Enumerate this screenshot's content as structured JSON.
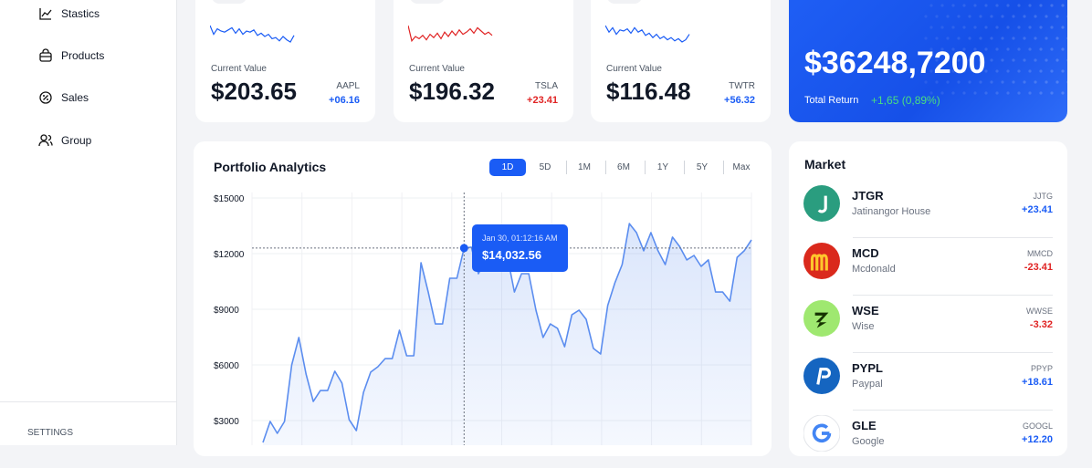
{
  "sidebar": {
    "menu": [
      "Stastics",
      "Products",
      "Sales",
      "Group"
    ],
    "settings": "SETTINGS"
  },
  "cards": [
    {
      "label": "Current Value",
      "value": "$203.65",
      "ticker": "AAPL",
      "change": "+06.16",
      "color": "#1a5cf5"
    },
    {
      "label": "Current Value",
      "value": "$196.32",
      "ticker": "TSLA",
      "change": "+23.41",
      "color": "#e02424"
    },
    {
      "label": "Current Value",
      "value": "$116.48",
      "ticker": "TWTR",
      "change": "+56.32",
      "color": "#1a5cf5"
    }
  ],
  "total": {
    "value": "$36248,7200",
    "label": "Total Return",
    "change": "+1,65 (0,89%)"
  },
  "portfolio": {
    "title": "Portfolio Analytics",
    "ranges": [
      "1D",
      "5D",
      "1M",
      "6M",
      "1Y",
      "5Y",
      "Max"
    ],
    "chart": {
      "type": "line",
      "color": "#5b8def",
      "grid": true,
      "ylim": [
        0,
        15000
      ],
      "yticks": [
        {
          "value": 3000,
          "label": "$3000"
        },
        {
          "value": 6000,
          "label": "$6000"
        },
        {
          "value": 9000,
          "label": "$9000"
        },
        {
          "value": 12000,
          "label": "$12000"
        },
        {
          "value": 15000,
          "label": "$15000"
        }
      ],
      "values": [
        1820,
        2950,
        2310,
        2950,
        6000,
        7480,
        5510,
        4030,
        4620,
        4620,
        5660,
        5020,
        3050,
        2460,
        4520,
        5610,
        5900,
        6340,
        6340,
        7870,
        6490,
        6490,
        11510,
        9930,
        8210,
        8210,
        10670,
        10670,
        12300,
        12350,
        10920,
        11660,
        12490,
        12390,
        11900,
        9930,
        10920,
        10920,
        8950,
        7480,
        8210,
        7970,
        6980,
        8700,
        8950,
        8460,
        6890,
        6590,
        9200,
        10430,
        11410,
        13620,
        13130,
        12150,
        13130,
        12150,
        11410,
        12890,
        12390,
        11660,
        11900,
        11310,
        11660,
        9930,
        9930,
        9440,
        11800,
        12150,
        12740
      ]
    },
    "tooltip": {
      "date": "Jan 30, 01:12:16 AM",
      "value": "$14,032.56"
    }
  },
  "market": {
    "title": "Market",
    "items": [
      {
        "symbol": "JTGR",
        "name": "Jatinangor House",
        "ticker": "JJTG",
        "change": "+23.41",
        "color": "#1a5cf5"
      },
      {
        "symbol": "MCD",
        "name": "Mcdonald",
        "ticker": "MMCD",
        "change": "-23.41",
        "color": "#e02424"
      },
      {
        "symbol": "WSE",
        "name": "Wise",
        "ticker": "WWSE",
        "change": "-3.32",
        "color": "#e02424"
      },
      {
        "symbol": "PYPL",
        "name": "Paypal",
        "ticker": "PPYP",
        "change": "+18.61",
        "color": "#1a5cf5"
      },
      {
        "symbol": "GLE",
        "name": "Google",
        "ticker": "GOOGL",
        "change": "+12.20",
        "color": "#1a5cf5"
      }
    ]
  }
}
